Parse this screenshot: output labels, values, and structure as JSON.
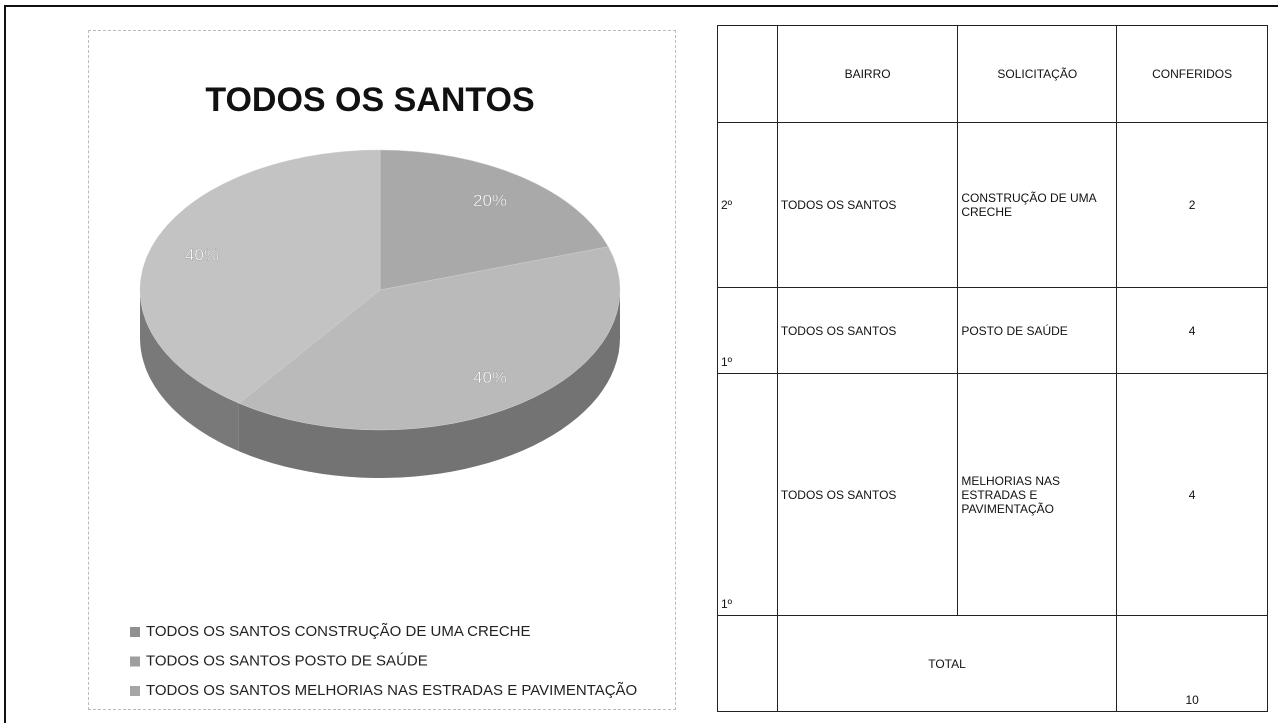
{
  "chart_data": {
    "type": "pie",
    "title": "TODOS OS SANTOS",
    "categories": [
      "TODOS OS SANTOS CONSTRUÇÃO DE UMA CRECHE",
      "TODOS OS SANTOS POSTO DE SAÚDE",
      "TODOS OS SANTOS MELHORIAS NAS ESTRADAS E PAVIMENTAÇÃO"
    ],
    "values": [
      20,
      40,
      40
    ],
    "value_labels": [
      "20%",
      "40%",
      "40%"
    ],
    "colors": [
      "#a9a9a9",
      "#bababa",
      "#c3c3c3"
    ],
    "legend": "bottom"
  },
  "table": {
    "header": [
      "BAIRRO",
      "SOLICITAÇÃO",
      "CONFERIDOS"
    ],
    "rows": [
      [
        "2º",
        "TODOS OS SANTOS",
        "CONSTRUÇÃO DE UMA CRECHE",
        2
      ],
      [
        "1º",
        "TODOS OS SANTOS",
        "POSTO DE SAÚDE",
        4
      ],
      [
        "1º",
        "TODOS OS SANTOS",
        "MELHORIAS NAS ESTRADAS E PAVIMENTAÇÃO",
        4
      ]
    ],
    "total_label": "TOTAL",
    "total": 10
  }
}
